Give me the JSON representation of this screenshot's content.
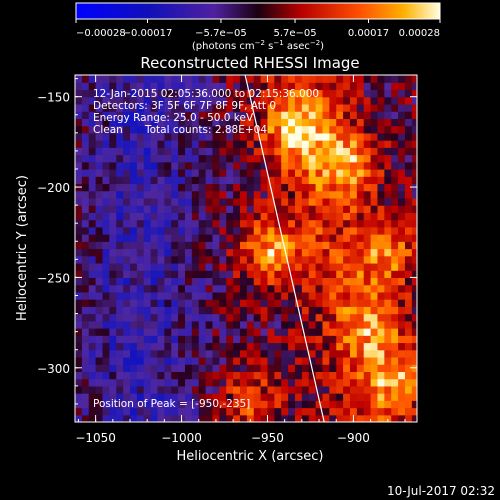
{
  "chart_data": {
    "type": "heatmap",
    "title": "Reconstructed RHESSI Image",
    "xlabel": "Heliocentric X (arcsec)",
    "ylabel": "Heliocentric Y (arcsec)",
    "xlim": [
      -1062,
      -863
    ],
    "ylim": [
      -330,
      -138
    ],
    "x_ticks": [
      -1050,
      -1000,
      -950,
      -900
    ],
    "x_tick_labels": [
      "−1050",
      "−1000",
      "−950",
      "−900"
    ],
    "y_ticks": [
      -300,
      -250,
      -200,
      -150
    ],
    "y_tick_labels": [
      "−300",
      "−250",
      "−200",
      "−150"
    ],
    "colorbar": {
      "min": -0.00028,
      "max": 0.00028,
      "ticks": [
        -0.00028,
        -0.00017,
        -5.7e-05,
        5.7e-05,
        0.00017,
        0.00028
      ],
      "tick_labels": [
        "−0.00028",
        "−0.00017",
        "−5.7e−05",
        "5.7e−05",
        "0.00017",
        "0.00028"
      ],
      "unit_prefix": "(photons cm",
      "unit_exp1": "−2",
      "unit_mid": " s",
      "unit_exp2": "−1",
      "unit_after": " asec",
      "unit_exp3": "−2",
      "unit_suffix": ")"
    },
    "annotations": {
      "time_range": "12-Jan-2015 02:05:36.000 to 02:15:36.000",
      "detectors": "Detectors: 3F 5F 6F 7F 8F 9F, Att 0",
      "energy": "Energy Range: 25.0 - 50.0 keV",
      "method": "Clean",
      "counts": "Total counts: 2.88E+04",
      "peak": "Position of Peak = [-950,-235]"
    },
    "limb_line": {
      "x": [
        -963,
        -917
      ],
      "y": [
        -138,
        -330
      ]
    },
    "hot_spots": [
      {
        "x": -948,
        "y": -235,
        "value": 0.00028
      },
      {
        "x": -935,
        "y": -168,
        "value": 0.00024
      },
      {
        "x": -905,
        "y": -185,
        "value": 0.00025
      },
      {
        "x": -880,
        "y": -235,
        "value": 0.00022
      },
      {
        "x": -875,
        "y": -305,
        "value": 0.0002
      },
      {
        "x": -960,
        "y": -318,
        "value": 0.00018
      },
      {
        "x": -890,
        "y": -275,
        "value": 0.00018
      }
    ],
    "grid": false
  },
  "footer": {
    "date": "10-Jul-2017 02:32"
  }
}
